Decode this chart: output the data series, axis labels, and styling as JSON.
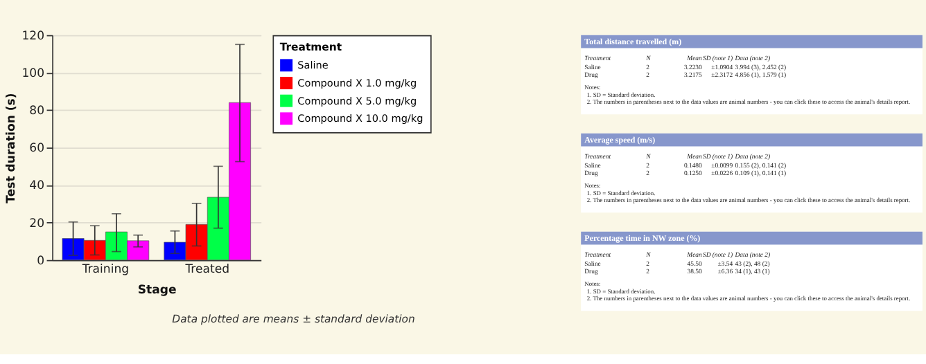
{
  "chart_data": [
    {
      "type": "bar",
      "categories": [
        "Training",
        "Treated"
      ],
      "xlabel": "Stage",
      "ylabel": "Test duration (s)",
      "legend_title": "Treatment",
      "ylim": [
        0,
        120
      ],
      "yticks": [
        0,
        20,
        40,
        60,
        80,
        100,
        120
      ],
      "grid": "y",
      "legend": "top right",
      "annotations": [
        "Data plotted are means ± standard deviation"
      ],
      "series": [
        {
          "name": "Saline",
          "color": "#0000ff",
          "values": [
            11.5,
            9.5
          ],
          "errors": [
            [
              2.5,
              20.3
            ],
            [
              3.5,
              15.5
            ]
          ]
        },
        {
          "name": "Compound X 1.0 mg/kg",
          "color": "#ff0000",
          "values": [
            10.5,
            19
          ],
          "errors": [
            [
              2.7,
              18.3
            ],
            [
              7.5,
              30.2
            ]
          ]
        },
        {
          "name": "Compound X 5.0 mg/kg",
          "color": "#00ff48",
          "values": [
            15,
            33.5
          ],
          "errors": [
            [
              4.5,
              24.7
            ],
            [
              17,
              50
            ]
          ]
        },
        {
          "name": "Compound X 10.0 mg/kg",
          "color": "#ff00ff",
          "values": [
            10.3,
            84
          ],
          "errors": [
            [
              7,
              13.3
            ],
            [
              52.5,
              115
            ]
          ]
        }
      ]
    },
    {
      "type": "other",
      "title": "Total distance travelled (m)",
      "annotations": [
        "Treatment",
        "N",
        "Mean",
        "SD (note 1)",
        "Data (note 2)",
        "Saline",
        "2",
        "3.2230",
        "±1.0904",
        "3.994 (3), 2.452 (2)",
        "Drug",
        "2",
        "3.2175",
        "±2.3172",
        "4.856 (1), 1.579 (1)",
        "Notes:",
        "1.  SD = Standard deviation.",
        "2.  The numbers in parentheses next to the data values are animal numbers - you can click these to access the animal's details report."
      ]
    },
    {
      "type": "other",
      "title": "Average speed (m/s)",
      "annotations": [
        "Treatment",
        "N",
        "Mean",
        "SD (note 1)",
        "Data (note 2)",
        "Saline",
        "2",
        "0.1480",
        "±0.0099",
        "0.155 (2), 0.141 (2)",
        "Drug",
        "2",
        "0.1250",
        "±0.0226",
        "0.109 (1), 0.141 (1)",
        "Notes:",
        "1.  SD = Standard deviation.",
        "2.  The numbers in parentheses next to the data values are animal numbers - you can click these to access the animal's details report."
      ]
    },
    {
      "type": "other",
      "title": "Percentage time in NW zone (%)",
      "annotations": [
        "Treatment",
        "N",
        "Mean",
        "SD (note 1)",
        "Data (note 2)",
        "Saline",
        "2",
        "45.50",
        "±3.54",
        "43 (2), 48 (2)",
        "Drug",
        "2",
        "38.50",
        "±6.36",
        "34 (1), 43 (1)",
        "Notes:",
        "1.  SD = Standard deviation.",
        "2.  The numbers in parentheses next to the data values are animal numbers - you can click these to access the animal's details report."
      ]
    }
  ]
}
